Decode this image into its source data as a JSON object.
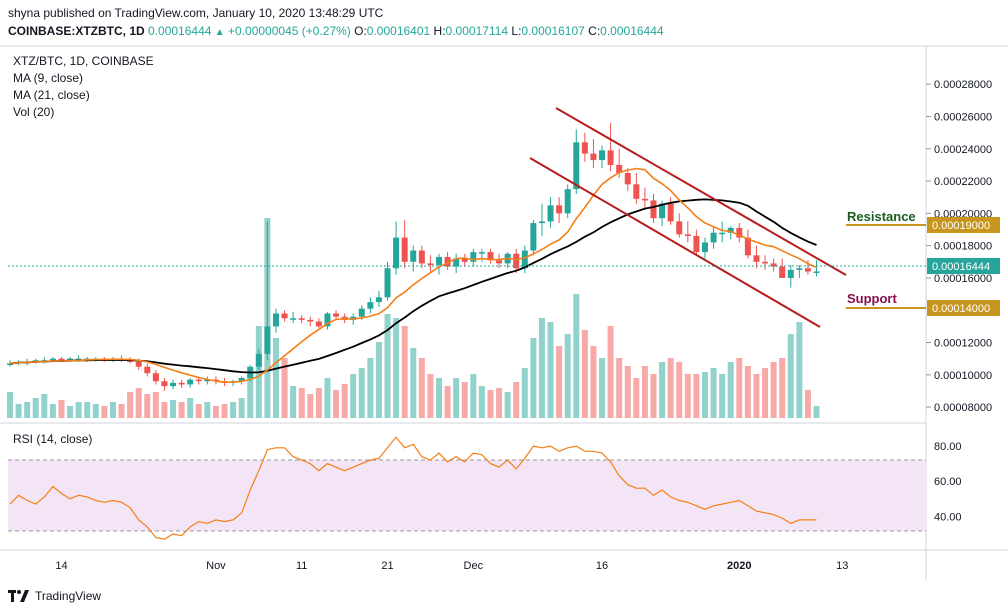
{
  "header": {
    "publisher": "shyna published on TradingView.com, January 10, 2020 13:48:29 UTC"
  },
  "symbol_line": {
    "symbol": "COINBASE:XTZBTC, 1D",
    "last": "0.00016444",
    "arrow": "▲",
    "change": "+0.00000045 (+0.27%)",
    "o_label": "O:",
    "o": "0.00016401",
    "h_label": "H:",
    "h": "0.00017114",
    "l_label": "L:",
    "l": "0.00016107",
    "c_label": "C:",
    "c": "0.00016444"
  },
  "legend": {
    "title": "XTZ/BTC, 1D, COINBASE",
    "ma9": "MA (9, close)",
    "ma21": "MA (21, close)",
    "vol": "Vol (20)"
  },
  "rsi_panel": {
    "label": "RSI (14, close)"
  },
  "price_axis": [
    "0.00028000",
    "0.00026000",
    "0.00024000",
    "0.00022000",
    "0.00020000",
    "0.00018000",
    "0.00016000",
    "0.00012000",
    "0.00010000",
    "0.00008000"
  ],
  "rsi_axis": [
    "80.00",
    "60.00",
    "40.00"
  ],
  "time_axis": [
    "14",
    "Nov",
    "11",
    "21",
    "Dec",
    "16",
    "2020",
    "13"
  ],
  "annotations": {
    "resistance_label": "Resistance",
    "resistance_value": "0.00019000",
    "support_label": "Support",
    "support_value": "0.00014000",
    "current_price": "0.00016444"
  },
  "colors": {
    "up": "#26a69a",
    "down": "#ef5350",
    "ma9": "#f57f17",
    "ma21": "#000000",
    "channel": "#b71c1c",
    "resistance": "#1b5e20",
    "support": "#880e4f",
    "level_box": "#c8961e",
    "rsi_line": "#f57f17",
    "rsi_band": "#f3e5f5"
  },
  "footer": {
    "brand": "TradingView"
  },
  "chart_data": {
    "type": "candlestick",
    "title": "XTZ/BTC, 1D, COINBASE",
    "x": [
      "Oct 8",
      "Oct 9",
      "Oct 10",
      "Oct 11",
      "Oct 12",
      "Oct 13",
      "Oct 14",
      "Oct 15",
      "Oct 16",
      "Oct 17",
      "Oct 18",
      "Oct 19",
      "Oct 20",
      "Oct 21",
      "Oct 22",
      "Oct 23",
      "Oct 24",
      "Oct 25",
      "Oct 26",
      "Oct 27",
      "Oct 28",
      "Oct 29",
      "Oct 30",
      "Oct 31",
      "Nov 1",
      "Nov 2",
      "Nov 3",
      "Nov 4",
      "Nov 5",
      "Nov 6",
      "Nov 7",
      "Nov 8",
      "Nov 9",
      "Nov 10",
      "Nov 11",
      "Nov 12",
      "Nov 13",
      "Nov 14",
      "Nov 15",
      "Nov 16",
      "Nov 17",
      "Nov 18",
      "Nov 19",
      "Nov 20",
      "Nov 21",
      "Nov 22",
      "Nov 23",
      "Nov 24",
      "Nov 25",
      "Nov 26",
      "Nov 27",
      "Nov 28",
      "Nov 29",
      "Nov 30",
      "Dec 1",
      "Dec 2",
      "Dec 3",
      "Dec 4",
      "Dec 5",
      "Dec 6",
      "Dec 7",
      "Dec 8",
      "Dec 9",
      "Dec 10",
      "Dec 11",
      "Dec 12",
      "Dec 13",
      "Dec 14",
      "Dec 15",
      "Dec 16",
      "Dec 17",
      "Dec 18",
      "Dec 19",
      "Dec 20",
      "Dec 21",
      "Dec 22",
      "Dec 23",
      "Dec 24",
      "Dec 25",
      "Dec 26",
      "Dec 27",
      "Dec 28",
      "Dec 29",
      "Dec 30",
      "Dec 31",
      "Jan 1",
      "Jan 2",
      "Jan 3",
      "Jan 4",
      "Jan 5",
      "Jan 6",
      "Jan 7",
      "Jan 8",
      "Jan 9",
      "Jan 10"
    ],
    "open": [
      0.000107,
      0.000107,
      0.000108,
      0.000108,
      0.000109,
      0.000109,
      0.00011,
      0.000109,
      0.00011,
      0.00011,
      0.00011,
      0.00011,
      0.000109,
      0.00011,
      0.000109,
      0.000108,
      0.000105,
      0.000101,
      9.6e-05,
      9.3e-05,
      9.5e-05,
      9.4e-05,
      9.7e-05,
      9.6e-05,
      9.7e-05,
      9.6e-05,
      9.5e-05,
      9.6e-05,
      9.8e-05,
      0.000105,
      0.000113,
      0.00013,
      0.000138,
      0.000135,
      0.000135,
      0.000134,
      0.000133,
      0.00013,
      0.000138,
      0.000136,
      0.000134,
      0.000136,
      0.000141,
      0.000145,
      0.000148,
      0.000166,
      0.000185,
      0.00017,
      0.000177,
      0.000169,
      0.000168,
      0.000173,
      0.000167,
      0.000172,
      0.00017,
      0.000176,
      0.000176,
      0.000171,
      0.000169,
      0.000175,
      0.000166,
      0.000177,
      0.000194,
      0.000195,
      0.000205,
      0.0002,
      0.000215,
      0.000244,
      0.000237,
      0.000233,
      0.000239,
      0.00023,
      0.000225,
      0.000218,
      0.000209,
      0.000208,
      0.000197,
      0.000206,
      0.000195,
      0.000187,
      0.000186,
      0.000176,
      0.000182,
      0.000188,
      0.000188,
      0.000191,
      0.000185,
      0.000174,
      0.00017,
      0.000169,
      0.000167,
      0.00016,
      0.000165,
      0.000166,
      0.000164
    ],
    "high": [
      0.000109,
      0.000109,
      0.00011,
      0.00011,
      0.000111,
      0.000111,
      0.000111,
      0.000111,
      0.000112,
      0.000111,
      0.000111,
      0.000111,
      0.000111,
      0.000112,
      0.000111,
      0.00011,
      0.000107,
      0.000103,
      9.8e-05,
      9.7e-05,
      9.7e-05,
      9.8e-05,
      9.9e-05,
      9.9e-05,
      9.9e-05,
      9.8e-05,
      9.7e-05,
      9.9e-05,
      0.000106,
      0.000116,
      0.000195,
      0.000141,
      0.00014,
      0.000139,
      0.000137,
      0.000136,
      0.000135,
      0.000139,
      0.00014,
      0.000138,
      0.000138,
      0.000143,
      0.000148,
      0.000152,
      0.00017,
      0.000195,
      0.000196,
      0.00018,
      0.00018,
      0.000174,
      0.000175,
      0.000176,
      0.000175,
      0.000175,
      0.000178,
      0.000178,
      0.000178,
      0.000175,
      0.000176,
      0.000178,
      0.00018,
      0.000196,
      0.000206,
      0.00021,
      0.00021,
      0.000218,
      0.000252,
      0.00025,
      0.000246,
      0.000242,
      0.000256,
      0.00024,
      0.000228,
      0.000225,
      0.000216,
      0.000212,
      0.000208,
      0.00021,
      0.0002,
      0.000195,
      0.00019,
      0.000185,
      0.000192,
      0.000195,
      0.000192,
      0.000194,
      0.00019,
      0.00018,
      0.000174,
      0.000172,
      0.000172,
      0.000168,
      0.000168,
      0.000171,
      0.000171
    ],
    "low": [
      0.000105,
      0.000106,
      0.000106,
      0.000107,
      0.000107,
      0.000108,
      0.000108,
      0.000108,
      0.000108,
      0.000108,
      0.000108,
      0.000108,
      0.000108,
      0.000108,
      0.000107,
      0.000103,
      9.9e-05,
      9.4e-05,
      9e-05,
      9.1e-05,
      9.2e-05,
      9.2e-05,
      9.4e-05,
      9.4e-05,
      9.4e-05,
      9.3e-05,
      9.3e-05,
      9.4e-05,
      9.6e-05,
      0.000103,
      0.000109,
      0.000126,
      0.000133,
      0.000132,
      0.000132,
      0.00013,
      0.000129,
      0.000128,
      0.000134,
      0.000132,
      0.000131,
      0.000134,
      0.000138,
      0.000142,
      0.000146,
      0.000162,
      0.000166,
      0.000164,
      0.000166,
      0.000164,
      0.000162,
      0.000165,
      0.000163,
      0.000167,
      0.000167,
      0.00017,
      0.000169,
      0.000166,
      0.000166,
      0.000163,
      0.000163,
      0.000174,
      0.000186,
      0.000191,
      0.000194,
      0.000197,
      0.000212,
      0.000232,
      0.000228,
      0.000228,
      0.000226,
      0.000222,
      0.000214,
      0.000206,
      0.000203,
      0.000194,
      0.000192,
      0.000193,
      0.000185,
      0.000182,
      0.000174,
      0.000172,
      0.000178,
      0.000182,
      0.000184,
      0.000182,
      0.000172,
      0.000166,
      0.000165,
      0.000164,
      0.00016,
      0.000154,
      0.00016,
      0.000162,
      0.000161
    ],
    "close": [
      0.000107,
      0.000108,
      0.000108,
      0.000109,
      0.000109,
      0.00011,
      0.000109,
      0.00011,
      0.00011,
      0.00011,
      0.00011,
      0.000109,
      0.00011,
      0.000109,
      0.000108,
      0.000105,
      0.000101,
      9.6e-05,
      9.3e-05,
      9.5e-05,
      9.4e-05,
      9.7e-05,
      9.6e-05,
      9.7e-05,
      9.6e-05,
      9.5e-05,
      9.6e-05,
      9.8e-05,
      0.000105,
      0.000113,
      0.00013,
      0.000138,
      0.000135,
      0.000135,
      0.000134,
      0.000133,
      0.00013,
      0.000138,
      0.000136,
      0.000134,
      0.000136,
      0.000141,
      0.000145,
      0.000148,
      0.000166,
      0.000185,
      0.00017,
      0.000177,
      0.000169,
      0.000168,
      0.000173,
      0.000167,
      0.000172,
      0.00017,
      0.000176,
      0.000176,
      0.000171,
      0.000169,
      0.000175,
      0.000166,
      0.000177,
      0.000194,
      0.000195,
      0.000205,
      0.0002,
      0.000215,
      0.000244,
      0.000237,
      0.000233,
      0.000239,
      0.00023,
      0.000225,
      0.000218,
      0.000209,
      0.000208,
      0.000197,
      0.000206,
      0.000195,
      0.000187,
      0.000186,
      0.000176,
      0.000182,
      0.000188,
      0.000188,
      0.000191,
      0.000185,
      0.000174,
      0.00017,
      0.000169,
      0.000167,
      0.00016,
      0.000165,
      0.000166,
      0.000164,
      0.000164
    ],
    "volume": [
      0.13,
      0.07,
      0.08,
      0.1,
      0.12,
      0.07,
      0.09,
      0.06,
      0.08,
      0.08,
      0.07,
      0.06,
      0.08,
      0.07,
      0.13,
      0.15,
      0.12,
      0.13,
      0.08,
      0.09,
      0.08,
      0.1,
      0.07,
      0.08,
      0.06,
      0.07,
      0.08,
      0.1,
      0.22,
      0.46,
      1.0,
      0.4,
      0.3,
      0.16,
      0.15,
      0.12,
      0.15,
      0.2,
      0.14,
      0.17,
      0.22,
      0.25,
      0.3,
      0.38,
      0.52,
      0.5,
      0.46,
      0.35,
      0.3,
      0.22,
      0.2,
      0.16,
      0.2,
      0.18,
      0.22,
      0.16,
      0.14,
      0.15,
      0.13,
      0.18,
      0.25,
      0.4,
      0.5,
      0.48,
      0.36,
      0.42,
      0.62,
      0.44,
      0.36,
      0.3,
      0.46,
      0.3,
      0.26,
      0.2,
      0.26,
      0.22,
      0.28,
      0.3,
      0.28,
      0.22,
      0.22,
      0.23,
      0.25,
      0.22,
      0.28,
      0.3,
      0.26,
      0.22,
      0.25,
      0.28,
      0.3,
      0.42,
      0.48,
      0.14,
      0.06
    ],
    "rsi": [
      47,
      52,
      49,
      47,
      51,
      57,
      53,
      50,
      52,
      51,
      49,
      48,
      49,
      48,
      45,
      38,
      34,
      28,
      27,
      30,
      29,
      34,
      37,
      36,
      38,
      37,
      38,
      42,
      55,
      66,
      78,
      79,
      79,
      74,
      72,
      70,
      66,
      70,
      68,
      66,
      68,
      70,
      72,
      73,
      79,
      85,
      79,
      81,
      74,
      72,
      76,
      71,
      74,
      71,
      76,
      75,
      70,
      68,
      72,
      67,
      73,
      80,
      79,
      80,
      77,
      79,
      80,
      77,
      77,
      76,
      71,
      63,
      58,
      56,
      56,
      52,
      55,
      51,
      49,
      48,
      46,
      44,
      46,
      47,
      48,
      49,
      46,
      43,
      42,
      41,
      39,
      36,
      38,
      38,
      38
    ],
    "ylim": [
      7.2e-05,
      0.000295
    ],
    "rsi_ylim": [
      22,
      88
    ]
  }
}
